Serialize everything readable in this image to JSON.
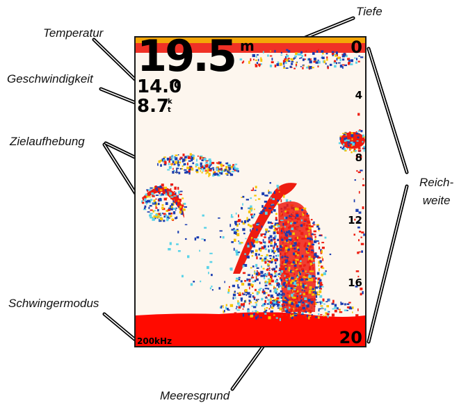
{
  "callouts": {
    "depth": "Tiefe",
    "temperature": "Temperatur",
    "speed": "Geschwindigkeit",
    "target_separation": "Zielaufhebung",
    "range": "Reich-\nweite",
    "transducer_mode": "Schwingermodus",
    "seafloor": "Meeresgrund"
  },
  "display": {
    "depth_value": "19.5",
    "depth_unit": "m",
    "temperature_value": "14.0",
    "temperature_unit": "°C",
    "speed_value": "8.7",
    "speed_unit_top": "k",
    "speed_unit_bottom": "t",
    "frequency": "200kHz",
    "scale_top": "0",
    "scale_ticks": [
      "4",
      "8",
      "12",
      "16"
    ],
    "scale_bottom": "20"
  },
  "colors": {
    "background": "#fdf6ee",
    "echo_strong": "#ee1c10",
    "echo_medium": "#f5c400",
    "echo_weak": "#1a3cb0",
    "echo_faint": "#5ad3e8",
    "bottom": "#ff0a00"
  }
}
